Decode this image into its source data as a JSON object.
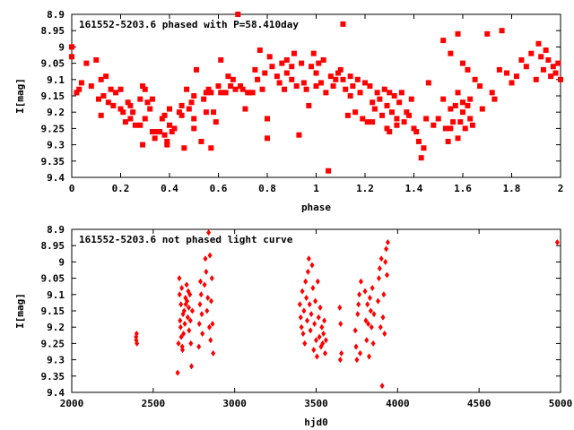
{
  "chart_data": [
    {
      "type": "scatter",
      "title": "161552-5203.6 phased with P=58.410day",
      "xlabel": "phase",
      "ylabel": "I[mag]",
      "xlim": [
        0,
        2
      ],
      "ylim": [
        8.9,
        9.4
      ],
      "y_inverted": true,
      "x_ticks": [
        "0",
        "0.2",
        "0.4",
        "0.6",
        "0.8",
        "1",
        "1.2",
        "1.4",
        "1.6",
        "1.8",
        "2"
      ],
      "y_ticks": [
        "8.9",
        "8.95",
        "9",
        "9.05",
        "9.1",
        "9.15",
        "9.2",
        "9.25",
        "9.3",
        "9.35",
        "9.4"
      ],
      "marker": "filled-square",
      "color": "#ff0000",
      "points": [
        [
          0.0,
          9.0
        ],
        [
          0.0,
          9.03
        ],
        [
          0.02,
          9.14
        ],
        [
          0.03,
          9.13
        ],
        [
          0.04,
          9.11
        ],
        [
          0.06,
          9.05
        ],
        [
          0.08,
          9.12
        ],
        [
          0.1,
          9.04
        ],
        [
          0.11,
          9.16
        ],
        [
          0.12,
          9.21
        ],
        [
          0.12,
          9.1
        ],
        [
          0.13,
          9.15
        ],
        [
          0.14,
          9.09
        ],
        [
          0.15,
          9.17
        ],
        [
          0.16,
          9.13
        ],
        [
          0.17,
          9.18
        ],
        [
          0.18,
          9.14
        ],
        [
          0.2,
          9.13
        ],
        [
          0.2,
          9.19
        ],
        [
          0.21,
          9.2
        ],
        [
          0.22,
          9.23
        ],
        [
          0.23,
          9.17
        ],
        [
          0.24,
          9.18
        ],
        [
          0.24,
          9.22
        ],
        [
          0.25,
          9.2
        ],
        [
          0.26,
          9.24
        ],
        [
          0.28,
          9.24
        ],
        [
          0.28,
          9.16
        ],
        [
          0.29,
          9.3
        ],
        [
          0.29,
          9.12
        ],
        [
          0.3,
          9.22
        ],
        [
          0.3,
          9.13
        ],
        [
          0.31,
          9.17
        ],
        [
          0.32,
          9.19
        ],
        [
          0.33,
          9.26
        ],
        [
          0.33,
          9.16
        ],
        [
          0.34,
          9.28
        ],
        [
          0.35,
          9.26
        ],
        [
          0.36,
          9.26
        ],
        [
          0.37,
          9.22
        ],
        [
          0.38,
          9.21
        ],
        [
          0.38,
          9.27
        ],
        [
          0.39,
          9.29
        ],
        [
          0.39,
          9.3
        ],
        [
          0.4,
          9.24
        ],
        [
          0.4,
          9.19
        ],
        [
          0.41,
          9.26
        ],
        [
          0.42,
          9.25
        ],
        [
          0.44,
          9.2
        ],
        [
          0.45,
          9.21
        ],
        [
          0.45,
          9.18
        ],
        [
          0.46,
          9.31
        ],
        [
          0.47,
          9.13
        ],
        [
          0.48,
          9.19
        ],
        [
          0.49,
          9.17
        ],
        [
          0.5,
          9.15
        ],
        [
          0.5,
          9.25
        ],
        [
          0.5,
          9.22
        ],
        [
          0.51,
          9.07
        ],
        [
          0.53,
          9.29
        ],
        [
          0.54,
          9.16
        ],
        [
          0.55,
          9.2
        ],
        [
          0.55,
          9.14
        ],
        [
          0.56,
          9.13
        ],
        [
          0.57,
          9.14
        ],
        [
          0.57,
          9.31
        ],
        [
          0.58,
          9.2
        ],
        [
          0.59,
          9.23
        ],
        [
          0.6,
          9.12
        ],
        [
          0.61,
          9.14
        ],
        [
          0.61,
          9.04
        ],
        [
          0.63,
          9.14
        ],
        [
          0.64,
          9.09
        ],
        [
          0.65,
          9.12
        ],
        [
          0.66,
          9.1
        ],
        [
          0.67,
          9.13
        ],
        [
          0.68,
          8.9
        ],
        [
          0.69,
          9.12
        ],
        [
          0.7,
          9.13
        ],
        [
          0.71,
          9.19
        ],
        [
          0.72,
          9.14
        ],
        [
          0.73,
          9.14
        ],
        [
          0.74,
          9.14
        ],
        [
          0.75,
          9.07
        ],
        [
          0.76,
          9.1
        ],
        [
          0.77,
          9.01
        ],
        [
          0.78,
          9.13
        ],
        [
          0.79,
          9.08
        ],
        [
          0.8,
          9.28
        ],
        [
          0.8,
          9.22
        ],
        [
          0.81,
          9.03
        ],
        [
          0.82,
          9.06
        ],
        [
          0.84,
          9.09
        ],
        [
          0.85,
          9.11
        ],
        [
          0.86,
          9.05
        ],
        [
          0.87,
          9.13
        ],
        [
          0.88,
          9.08
        ],
        [
          0.88,
          9.04
        ],
        [
          0.9,
          9.1
        ],
        [
          0.9,
          9.06
        ],
        [
          0.91,
          9.02
        ],
        [
          0.92,
          9.12
        ],
        [
          0.93,
          9.27
        ],
        [
          0.94,
          9.05
        ],
        [
          0.95,
          9.11
        ],
        [
          0.96,
          9.13
        ],
        [
          0.97,
          9.18
        ],
        [
          0.98,
          9.06
        ],
        [
          0.99,
          9.02
        ],
        [
          1.0,
          9.08
        ],
        [
          1.0,
          9.12
        ],
        [
          1.01,
          9.05
        ],
        [
          1.02,
          9.11
        ],
        [
          1.03,
          9.04
        ],
        [
          1.04,
          9.14
        ],
        [
          1.05,
          9.38
        ],
        [
          1.06,
          9.09
        ],
        [
          1.07,
          9.12
        ],
        [
          1.08,
          9.1
        ],
        [
          1.09,
          9.08
        ],
        [
          1.1,
          9.07
        ],
        [
          1.11,
          9.1
        ],
        [
          1.11,
          8.93
        ],
        [
          1.12,
          9.13
        ],
        [
          1.13,
          9.21
        ],
        [
          1.14,
          9.09
        ],
        [
          1.14,
          9.15
        ],
        [
          1.15,
          9.12
        ],
        [
          1.16,
          9.2
        ],
        [
          1.17,
          9.1
        ],
        [
          1.18,
          9.14
        ],
        [
          1.19,
          9.22
        ],
        [
          1.2,
          9.11
        ],
        [
          1.21,
          9.23
        ],
        [
          1.22,
          9.12
        ],
        [
          1.23,
          9.17
        ],
        [
          1.23,
          9.23
        ],
        [
          1.24,
          9.19
        ],
        [
          1.25,
          9.14
        ],
        [
          1.26,
          9.16
        ],
        [
          1.27,
          9.21
        ],
        [
          1.28,
          9.13
        ],
        [
          1.29,
          9.18
        ],
        [
          1.29,
          9.25
        ],
        [
          1.3,
          9.14
        ],
        [
          1.3,
          9.26
        ],
        [
          1.31,
          9.2
        ],
        [
          1.32,
          9.15
        ],
        [
          1.33,
          9.22
        ],
        [
          1.33,
          9.24
        ],
        [
          1.34,
          9.17
        ],
        [
          1.35,
          9.14
        ],
        [
          1.36,
          9.23
        ],
        [
          1.37,
          9.2
        ],
        [
          1.38,
          9.21
        ],
        [
          1.39,
          9.16
        ],
        [
          1.4,
          9.25
        ],
        [
          1.41,
          9.26
        ],
        [
          1.42,
          9.29
        ],
        [
          1.43,
          9.34
        ],
        [
          1.44,
          9.31
        ],
        [
          1.45,
          9.22
        ],
        [
          1.46,
          9.11
        ],
        [
          1.48,
          9.24
        ],
        [
          1.5,
          9.22
        ],
        [
          1.52,
          9.16
        ],
        [
          1.53,
          9.25
        ],
        [
          1.54,
          9.29
        ],
        [
          1.55,
          9.25
        ],
        [
          1.55,
          9.19
        ],
        [
          1.56,
          9.23
        ],
        [
          1.57,
          9.18
        ],
        [
          1.58,
          9.28
        ],
        [
          1.58,
          9.14
        ],
        [
          1.59,
          9.23
        ],
        [
          1.6,
          9.17
        ],
        [
          1.6,
          9.2
        ],
        [
          1.61,
          9.25
        ],
        [
          1.62,
          9.18
        ],
        [
          1.63,
          9.16
        ],
        [
          1.63,
          9.22
        ],
        [
          1.64,
          9.24
        ],
        [
          1.52,
          8.98
        ],
        [
          1.55,
          9.02
        ],
        [
          1.58,
          8.96
        ],
        [
          1.6,
          9.05
        ],
        [
          1.62,
          9.07
        ],
        [
          1.65,
          9.1
        ],
        [
          1.67,
          9.12
        ],
        [
          1.68,
          9.19
        ],
        [
          1.7,
          8.96
        ],
        [
          1.72,
          9.14
        ],
        [
          1.73,
          9.16
        ],
        [
          1.75,
          9.07
        ],
        [
          1.76,
          8.95
        ],
        [
          1.78,
          9.08
        ],
        [
          1.8,
          9.11
        ],
        [
          1.82,
          9.09
        ],
        [
          1.84,
          9.04
        ],
        [
          1.86,
          9.06
        ],
        [
          1.88,
          9.02
        ],
        [
          1.9,
          9.1
        ],
        [
          1.91,
          8.99
        ],
        [
          1.92,
          9.03
        ],
        [
          1.93,
          9.07
        ],
        [
          1.94,
          9.01
        ],
        [
          1.95,
          9.04
        ],
        [
          1.96,
          9.09
        ],
        [
          1.97,
          9.06
        ],
        [
          1.98,
          9.08
        ],
        [
          1.99,
          9.05
        ],
        [
          2.0,
          9.1
        ]
      ]
    },
    {
      "type": "scatter",
      "title": "161552-5203.6 not phased light curve",
      "xlabel": "hjd0",
      "ylabel": "I[mag]",
      "xlim": [
        2000,
        5000
      ],
      "ylim": [
        8.9,
        9.4
      ],
      "y_inverted": true,
      "x_ticks": [
        "2000",
        "2500",
        "3000",
        "3500",
        "4000",
        "4500",
        "5000"
      ],
      "y_ticks": [
        "8.9",
        "8.95",
        "9",
        "9.05",
        "9.1",
        "9.15",
        "9.2",
        "9.25",
        "9.3",
        "9.35",
        "9.4"
      ],
      "marker": "filled-diamond",
      "color": "#ff0000",
      "points": [
        [
          2395,
          9.23
        ],
        [
          2396,
          9.24
        ],
        [
          2398,
          9.22
        ],
        [
          2400,
          9.25
        ],
        [
          2650,
          9.34
        ],
        [
          2655,
          9.25
        ],
        [
          2660,
          9.05
        ],
        [
          2662,
          9.1
        ],
        [
          2665,
          9.18
        ],
        [
          2668,
          9.2
        ],
        [
          2670,
          9.13
        ],
        [
          2672,
          9.23
        ],
        [
          2675,
          9.08
        ],
        [
          2678,
          9.26
        ],
        [
          2680,
          9.27
        ],
        [
          2683,
          9.16
        ],
        [
          2686,
          9.22
        ],
        [
          2690,
          9.15
        ],
        [
          2694,
          9.19
        ],
        [
          2698,
          9.11
        ],
        [
          2700,
          9.13
        ],
        [
          2705,
          9.07
        ],
        [
          2708,
          9.12
        ],
        [
          2712,
          9.17
        ],
        [
          2715,
          9.09
        ],
        [
          2718,
          9.14
        ],
        [
          2720,
          9.21
        ],
        [
          2725,
          9.1
        ],
        [
          2728,
          9.18
        ],
        [
          2731,
          9.25
        ],
        [
          2735,
          9.32
        ],
        [
          2740,
          9.15
        ],
        [
          2780,
          9.26
        ],
        [
          2783,
          9.19
        ],
        [
          2787,
          9.13
        ],
        [
          2790,
          9.06
        ],
        [
          2794,
          9.1
        ],
        [
          2798,
          9.16
        ],
        [
          2802,
          9.22
        ],
        [
          2815,
          9.07
        ],
        [
          2820,
          8.99
        ],
        [
          2825,
          9.03
        ],
        [
          2830,
          9.15
        ],
        [
          2835,
          9.11
        ],
        [
          2840,
          8.91
        ],
        [
          2845,
          9.2
        ],
        [
          2848,
          8.98
        ],
        [
          2852,
          9.24
        ],
        [
          2856,
          9.12
        ],
        [
          2860,
          9.05
        ],
        [
          2864,
          9.19
        ],
        [
          2868,
          9.28
        ],
        [
          3400,
          9.13
        ],
        [
          3405,
          9.17
        ],
        [
          3410,
          9.2
        ],
        [
          3415,
          9.09
        ],
        [
          3420,
          9.22
        ],
        [
          3425,
          9.15
        ],
        [
          3430,
          9.25
        ],
        [
          3435,
          9.06
        ],
        [
          3440,
          9.11
        ],
        [
          3445,
          9.18
        ],
        [
          3450,
          9.03
        ],
        [
          3455,
          8.99
        ],
        [
          3460,
          9.13
        ],
        [
          3465,
          9.21
        ],
        [
          3470,
          9.16
        ],
        [
          3475,
          9.01
        ],
        [
          3480,
          9.08
        ],
        [
          3485,
          9.27
        ],
        [
          3490,
          9.19
        ],
        [
          3495,
          9.12
        ],
        [
          3500,
          9.24
        ],
        [
          3505,
          9.29
        ],
        [
          3510,
          9.06
        ],
        [
          3515,
          9.17
        ],
        [
          3520,
          9.23
        ],
        [
          3525,
          9.14
        ],
        [
          3530,
          9.26
        ],
        [
          3535,
          9.2
        ],
        [
          3540,
          9.25
        ],
        [
          3545,
          9.22
        ],
        [
          3550,
          9.18
        ],
        [
          3555,
          9.28
        ],
        [
          3560,
          9.24
        ],
        [
          3645,
          9.14
        ],
        [
          3648,
          9.3
        ],
        [
          3650,
          9.19
        ],
        [
          3655,
          9.28
        ],
        [
          3740,
          9.21
        ],
        [
          3745,
          9.26
        ],
        [
          3750,
          9.3
        ],
        [
          3755,
          9.16
        ],
        [
          3760,
          9.13
        ],
        [
          3765,
          9.1
        ],
        [
          3770,
          9.28
        ],
        [
          3775,
          9.06
        ],
        [
          3800,
          9.09
        ],
        [
          3805,
          9.18
        ],
        [
          3810,
          9.24
        ],
        [
          3815,
          9.13
        ],
        [
          3820,
          9.19
        ],
        [
          3825,
          9.29
        ],
        [
          3830,
          9.11
        ],
        [
          3835,
          9.15
        ],
        [
          3840,
          9.2
        ],
        [
          3845,
          9.08
        ],
        [
          3850,
          9.25
        ],
        [
          3855,
          9.16
        ],
        [
          3880,
          9.12
        ],
        [
          3885,
          9.05
        ],
        [
          3890,
          9.02
        ],
        [
          3895,
          9.2
        ],
        [
          3900,
          8.99
        ],
        [
          3905,
          9.38
        ],
        [
          3910,
          9.17
        ],
        [
          3915,
          9.1
        ],
        [
          3920,
          9.22
        ],
        [
          3925,
          9.0
        ],
        [
          3930,
          8.96
        ],
        [
          3935,
          9.04
        ],
        [
          3940,
          8.94
        ],
        [
          4980,
          8.94
        ]
      ]
    }
  ]
}
